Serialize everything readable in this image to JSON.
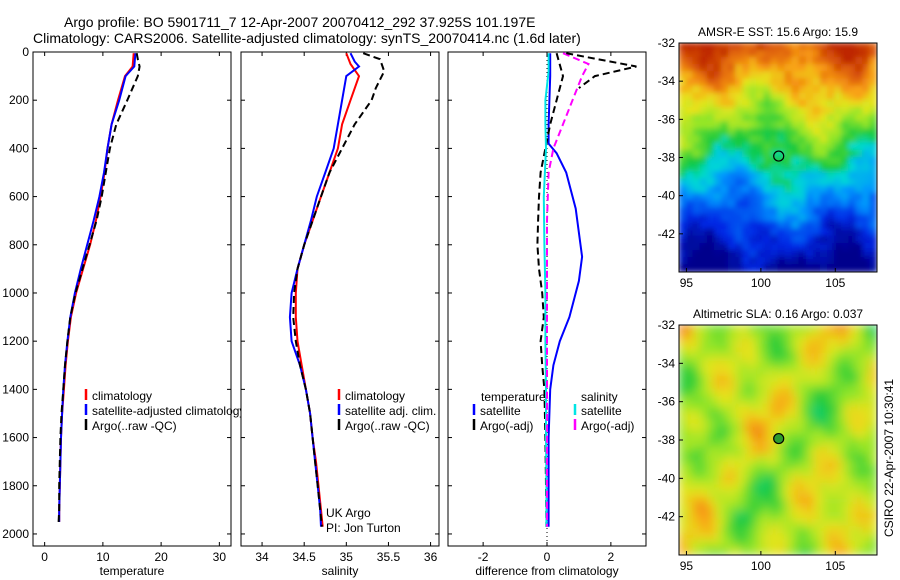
{
  "header": {
    "line1": "Argo profile: BO 5901711_7 12-Apr-2007 20070412_292 37.925S 101.197E",
    "line2": "Climatology: CARS2006. Satellite-adjusted climatology: synTS_20070414.nc (1.6d later)"
  },
  "credit": "CSIRO 22-Apr-2007 10:30:41",
  "colors": {
    "climatology": "#ff0000",
    "satellite": "#0000ff",
    "argo": "#000000",
    "sat_salinity": "#00e5e5",
    "argo_salinity": "#ff00ff"
  },
  "chart_data": [
    {
      "type": "line",
      "id": "temperature",
      "xlabel": "temperature",
      "xlim": [
        -2,
        32
      ],
      "xticks": [
        0,
        10,
        20,
        30
      ],
      "ylim": [
        2050,
        0
      ],
      "yticks": [
        0,
        200,
        400,
        600,
        800,
        1000,
        1200,
        1400,
        1600,
        1800,
        2000
      ],
      "y_reversed": true,
      "legend_location": "lower-right",
      "legend": [
        "climatology",
        "satellite-adjusted climatology",
        "Argo(..raw -QC)"
      ],
      "series": [
        {
          "name": "climatology",
          "color": "#ff0000",
          "style": "solid",
          "points": [
            [
              15.3,
              5
            ],
            [
              15.2,
              30
            ],
            [
              15.1,
              60
            ],
            [
              13.8,
              100
            ],
            [
              12.6,
              200
            ],
            [
              11.5,
              300
            ],
            [
              10.8,
              400
            ],
            [
              10.3,
              500
            ],
            [
              9.6,
              600
            ],
            [
              8.8,
              700
            ],
            [
              7.8,
              800
            ],
            [
              6.6,
              900
            ],
            [
              5.4,
              1000
            ],
            [
              4.5,
              1100
            ],
            [
              4.0,
              1200
            ],
            [
              3.6,
              1300
            ],
            [
              3.3,
              1400
            ],
            [
              3.0,
              1500
            ],
            [
              2.8,
              1600
            ],
            [
              2.7,
              1700
            ],
            [
              2.6,
              1800
            ],
            [
              2.5,
              1900
            ],
            [
              2.5,
              1950
            ]
          ]
        },
        {
          "name": "satellite-adjusted climatology",
          "color": "#0000ff",
          "style": "solid",
          "points": [
            [
              15.6,
              5
            ],
            [
              15.5,
              30
            ],
            [
              15.4,
              60
            ],
            [
              13.9,
              100
            ],
            [
              12.8,
              200
            ],
            [
              11.5,
              300
            ],
            [
              10.8,
              400
            ],
            [
              10.2,
              500
            ],
            [
              9.4,
              600
            ],
            [
              8.4,
              700
            ],
            [
              7.3,
              800
            ],
            [
              6.2,
              900
            ],
            [
              5.2,
              1000
            ],
            [
              4.4,
              1100
            ],
            [
              3.9,
              1200
            ],
            [
              3.5,
              1300
            ],
            [
              3.2,
              1400
            ],
            [
              3.0,
              1500
            ],
            [
              2.8,
              1600
            ],
            [
              2.7,
              1700
            ],
            [
              2.6,
              1800
            ],
            [
              2.5,
              1900
            ],
            [
              2.5,
              1950
            ]
          ]
        },
        {
          "name": "Argo(..raw -QC)",
          "color": "#000000",
          "style": "dashed",
          "points": [
            [
              15.8,
              5
            ],
            [
              16.0,
              30
            ],
            [
              16.3,
              60
            ],
            [
              16.0,
              100
            ],
            [
              14.2,
              200
            ],
            [
              12.3,
              300
            ],
            [
              11.2,
              400
            ],
            [
              10.5,
              500
            ],
            [
              9.8,
              600
            ],
            [
              8.9,
              700
            ],
            [
              7.7,
              800
            ],
            [
              6.5,
              900
            ],
            [
              5.3,
              1000
            ],
            [
              4.4,
              1100
            ],
            [
              3.9,
              1200
            ],
            [
              3.5,
              1300
            ],
            [
              3.2,
              1400
            ],
            [
              2.9,
              1500
            ],
            [
              2.7,
              1600
            ],
            [
              2.6,
              1700
            ],
            [
              2.5,
              1800
            ],
            [
              2.5,
              1900
            ],
            [
              2.4,
              1950
            ]
          ]
        }
      ]
    },
    {
      "type": "line",
      "id": "salinity",
      "xlabel": "salinity",
      "xlim": [
        33.75,
        36.1
      ],
      "xticks": [
        34,
        34.5,
        35,
        35.5,
        36
      ],
      "xticklabels": [
        "34",
        "34.5",
        "35",
        "35.5",
        "36"
      ],
      "ylim": [
        2050,
        0
      ],
      "y_reversed": true,
      "legend_location": "lower-right",
      "legend": [
        "climatology",
        "satellite adj. clim.",
        "Argo(..raw -QC)"
      ],
      "annotation": [
        "UK Argo",
        "PI: Jon Turton"
      ],
      "series": [
        {
          "name": "climatology",
          "color": "#ff0000",
          "style": "solid",
          "points": [
            [
              35.0,
              5
            ],
            [
              35.05,
              50
            ],
            [
              35.15,
              100
            ],
            [
              35.05,
              200
            ],
            [
              34.95,
              300
            ],
            [
              34.9,
              400
            ],
            [
              34.8,
              500
            ],
            [
              34.7,
              600
            ],
            [
              34.6,
              700
            ],
            [
              34.5,
              800
            ],
            [
              34.42,
              900
            ],
            [
              34.4,
              1000
            ],
            [
              34.4,
              1100
            ],
            [
              34.42,
              1200
            ],
            [
              34.47,
              1300
            ],
            [
              34.52,
              1400
            ],
            [
              34.57,
              1500
            ],
            [
              34.6,
              1600
            ],
            [
              34.64,
              1700
            ],
            [
              34.67,
              1800
            ],
            [
              34.7,
              1900
            ],
            [
              34.72,
              1970
            ]
          ]
        },
        {
          "name": "satellite adj. clim.",
          "color": "#0000ff",
          "style": "solid",
          "points": [
            [
              35.05,
              5
            ],
            [
              35.1,
              40
            ],
            [
              35.15,
              60
            ],
            [
              35.0,
              100
            ],
            [
              34.95,
              200
            ],
            [
              34.9,
              300
            ],
            [
              34.85,
              400
            ],
            [
              34.75,
              500
            ],
            [
              34.65,
              600
            ],
            [
              34.58,
              700
            ],
            [
              34.5,
              800
            ],
            [
              34.42,
              900
            ],
            [
              34.35,
              1000
            ],
            [
              34.33,
              1100
            ],
            [
              34.35,
              1200
            ],
            [
              34.45,
              1300
            ],
            [
              34.52,
              1400
            ],
            [
              34.57,
              1500
            ],
            [
              34.6,
              1600
            ],
            [
              34.63,
              1700
            ],
            [
              34.66,
              1800
            ],
            [
              34.69,
              1900
            ],
            [
              34.7,
              1970
            ]
          ]
        },
        {
          "name": "Argo(..raw -QC)",
          "color": "#000000",
          "style": "dashed",
          "points": [
            [
              35.2,
              5
            ],
            [
              35.4,
              30
            ],
            [
              35.45,
              80
            ],
            [
              35.35,
              150
            ],
            [
              35.3,
              200
            ],
            [
              35.1,
              300
            ],
            [
              34.95,
              400
            ],
            [
              34.8,
              500
            ],
            [
              34.7,
              600
            ],
            [
              34.6,
              700
            ],
            [
              34.5,
              800
            ],
            [
              34.42,
              900
            ],
            [
              34.38,
              1000
            ],
            [
              34.37,
              1100
            ],
            [
              34.4,
              1200
            ],
            [
              34.45,
              1300
            ],
            [
              34.52,
              1400
            ],
            [
              34.57,
              1500
            ],
            [
              34.6,
              1600
            ],
            [
              34.63,
              1700
            ],
            [
              34.66,
              1800
            ],
            [
              34.69,
              1900
            ],
            [
              34.71,
              1970
            ]
          ]
        }
      ]
    },
    {
      "type": "line",
      "id": "difference",
      "xlabel": "difference from climatology",
      "xlim": [
        -3.1,
        3.1
      ],
      "xticks": [
        -2,
        0,
        2
      ],
      "ylim": [
        2050,
        0
      ],
      "y_reversed": true,
      "legend_location": "lower-left",
      "legend_temperature": {
        "title": "temperature",
        "items": [
          "satellite",
          "Argo(-adj)"
        ]
      },
      "legend_salinity": {
        "title": "salinity",
        "items": [
          "satellite",
          "Argo(-adj)"
        ]
      },
      "series": [
        {
          "name": "temperature satellite",
          "color": "#0000ff",
          "style": "solid",
          "points": [
            [
              0.1,
              5
            ],
            [
              0.1,
              100
            ],
            [
              0.05,
              300
            ],
            [
              0.05,
              380
            ],
            [
              0.3,
              420
            ],
            [
              0.6,
              500
            ],
            [
              0.9,
              650
            ],
            [
              1.05,
              800
            ],
            [
              1.1,
              850
            ],
            [
              1.0,
              950
            ],
            [
              0.7,
              1100
            ],
            [
              0.4,
              1200
            ],
            [
              0.2,
              1300
            ],
            [
              0.1,
              1400
            ],
            [
              0.05,
              1600
            ],
            [
              0.05,
              1800
            ],
            [
              0.05,
              1970
            ]
          ]
        },
        {
          "name": "temperature Argo(-adj)",
          "color": "#000000",
          "style": "dashed",
          "points": [
            [
              0.3,
              5
            ],
            [
              0.5,
              100
            ],
            [
              0.3,
              200
            ],
            [
              0.1,
              300
            ],
            [
              -0.05,
              400
            ],
            [
              -0.2,
              500
            ],
            [
              -0.25,
              600
            ],
            [
              -0.28,
              700
            ],
            [
              -0.3,
              800
            ],
            [
              -0.25,
              900
            ],
            [
              -0.15,
              1000
            ],
            [
              -0.1,
              1100
            ],
            [
              -0.2,
              1200
            ],
            [
              -0.15,
              1300
            ],
            [
              -0.08,
              1400
            ],
            [
              -0.05,
              1600
            ],
            [
              -0.03,
              1800
            ],
            [
              -0.02,
              1970
            ]
          ]
        },
        {
          "name": "salinity satellite",
          "color": "#00e5e5",
          "style": "solid",
          "points": [
            [
              0.05,
              5
            ],
            [
              0.05,
              80
            ],
            [
              -0.05,
              200
            ],
            [
              -0.05,
              300
            ],
            [
              -0.03,
              400
            ],
            [
              -0.1,
              600
            ],
            [
              -0.08,
              800
            ],
            [
              -0.05,
              1000
            ],
            [
              -0.05,
              1200
            ],
            [
              -0.03,
              1400
            ],
            [
              -0.03,
              1600
            ],
            [
              -0.02,
              1800
            ],
            [
              -0.02,
              1970
            ]
          ]
        },
        {
          "name": "salinity Argo(-adj)",
          "color": "#ff00ff",
          "style": "dashed",
          "points": [
            [
              0.5,
              5
            ],
            [
              1.3,
              50
            ],
            [
              1.1,
              100
            ],
            [
              0.8,
              200
            ],
            [
              0.5,
              300
            ],
            [
              0.2,
              400
            ],
            [
              0.05,
              500
            ],
            [
              0.0,
              700
            ],
            [
              0.0,
              1000
            ],
            [
              0.0,
              1400
            ],
            [
              0.0,
              1970
            ]
          ]
        },
        {
          "name": "Argo temperature near-surface",
          "color": "#000000",
          "style": "dashed",
          "points": [
            [
              0.6,
              5
            ],
            [
              2.8,
              60
            ],
            [
              1.5,
              100
            ],
            [
              1.0,
              150
            ]
          ]
        }
      ]
    },
    {
      "type": "heatmap",
      "id": "sst_map",
      "title": "AMSR-E SST: 15.6 Argo: 15.9",
      "xlim": [
        94.5,
        107.8
      ],
      "ylim": [
        -44,
        -32
      ],
      "xticks": [
        95,
        100,
        105
      ],
      "yticks": [
        -32,
        -34,
        -36,
        -38,
        -40,
        -42
      ],
      "marker": {
        "lon": 101.197,
        "lat": -37.925
      }
    },
    {
      "type": "heatmap",
      "id": "sla_map",
      "title": "Altimetric SLA: 0.16 Argo: 0.037",
      "xlim": [
        94.5,
        107.8
      ],
      "ylim": [
        -44,
        -32
      ],
      "xticks": [
        95,
        100,
        105
      ],
      "yticks": [
        -32,
        -34,
        -36,
        -38,
        -40,
        -42
      ],
      "marker": {
        "lon": 101.197,
        "lat": -37.925
      }
    }
  ]
}
